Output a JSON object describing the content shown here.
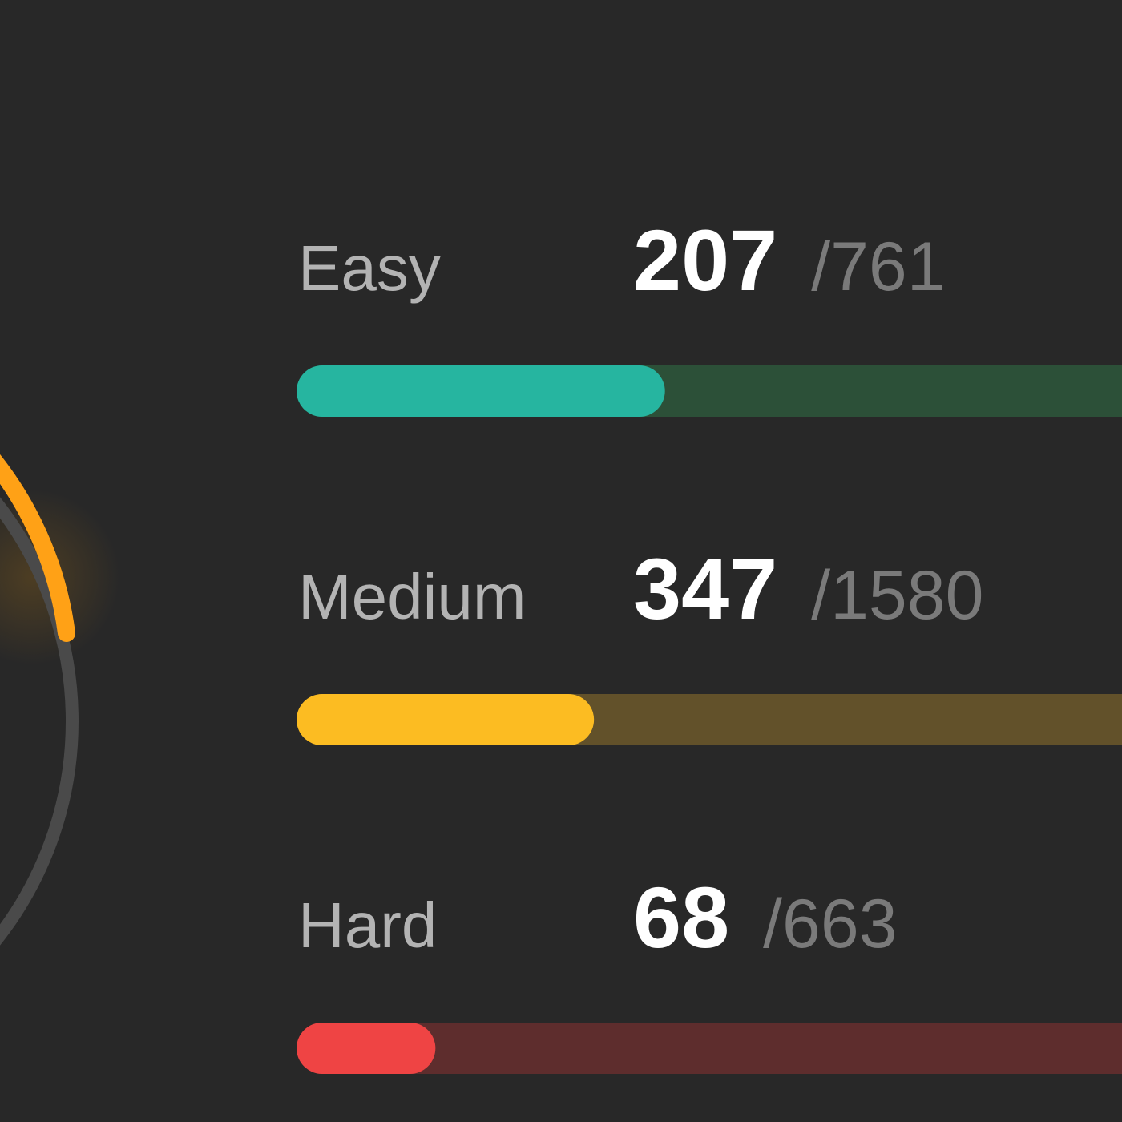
{
  "rows": [
    {
      "label": "Easy",
      "solved": 207,
      "total": {
        "value": 761,
        "label": "/761"
      },
      "color": "#26b5a0",
      "track_color": "#2c5038"
    },
    {
      "label": "Medium",
      "solved": 347,
      "total": {
        "value": 1580,
        "label": "/1580"
      },
      "color": "#fcbc22",
      "track_color": "#62512a"
    },
    {
      "label": "Hard",
      "solved": 68,
      "total": {
        "value": 663,
        "label": "/663"
      },
      "color": "#ef4444",
      "track_color": "#5e2d2d"
    }
  ]
}
